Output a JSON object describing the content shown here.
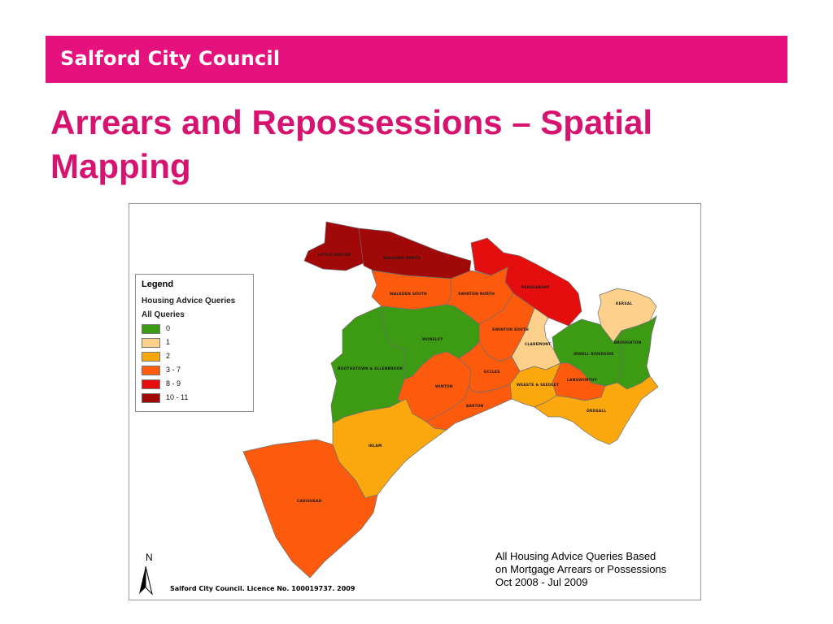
{
  "header": {
    "org_name": "Salford City Council",
    "brand_color": "#e5127d"
  },
  "slide": {
    "title": "Arrears and Repossessions – Spatial Mapping",
    "title_color": "#d6136f"
  },
  "legend": {
    "title": "Legend",
    "subtitle": "Housing Advice Queries",
    "field": "All Queries",
    "classes": [
      {
        "label": "0",
        "color": "#3c9a13"
      },
      {
        "label": "1",
        "color": "#fdd08c"
      },
      {
        "label": "2",
        "color": "#fba80f"
      },
      {
        "label": "3 - 7",
        "color": "#fc5a0c"
      },
      {
        "label": "8 - 9",
        "color": "#e40e0e"
      },
      {
        "label": "10 - 11",
        "color": "#a10808"
      }
    ]
  },
  "wards": [
    {
      "name": "LITTLE HULTON",
      "class": "10 - 11"
    },
    {
      "name": "WALKDEN NORTH",
      "class": "10 - 11"
    },
    {
      "name": "PENDLEBURY",
      "class": "8 - 9"
    },
    {
      "name": "WALKDEN SOUTH",
      "class": "3 - 7"
    },
    {
      "name": "SWINTON NORTH",
      "class": "3 - 7"
    },
    {
      "name": "SWINTON SOUTH",
      "class": "3 - 7"
    },
    {
      "name": "KERSAL",
      "class": "1"
    },
    {
      "name": "WORSLEY",
      "class": "0"
    },
    {
      "name": "BOOTHSTOWN & ELLENBROOK",
      "class": "0"
    },
    {
      "name": "CLAREMONT",
      "class": "1"
    },
    {
      "name": "IRWELL RIVERSIDE",
      "class": "0"
    },
    {
      "name": "BROUGHTON",
      "class": "0"
    },
    {
      "name": "WINTON",
      "class": "3 - 7"
    },
    {
      "name": "ECCLES",
      "class": "3 - 7"
    },
    {
      "name": "LANGWORTHY",
      "class": "3 - 7"
    },
    {
      "name": "WEASTE & SEEDLEY",
      "class": "2"
    },
    {
      "name": "BARTON",
      "class": "3 - 7"
    },
    {
      "name": "ORDSALL",
      "class": "2"
    },
    {
      "name": "IRLAM",
      "class": "2"
    },
    {
      "name": "CADISHEAD",
      "class": "3 - 7"
    }
  ],
  "north_label": "N",
  "licence": "Salford City Council. Licence No. 100019737. 2009",
  "caption": {
    "line1": "All Housing Advice Queries Based",
    "line2": "on Mortgage Arrears or Possessions",
    "line3": "Oct 2008 - Jul 2009"
  }
}
